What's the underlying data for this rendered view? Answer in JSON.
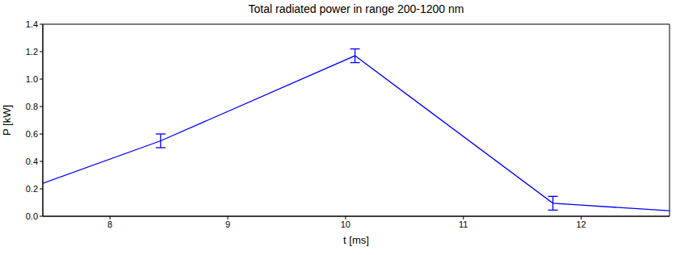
{
  "chart_data": {
    "type": "line",
    "title": "Total radiated power in range 200-1200 nm",
    "x_label": "t [ms]",
    "y_label": "P [kW]",
    "x": [
      7.43,
      8.43,
      10.08,
      11.76,
      12.75
    ],
    "series": [
      {
        "name": "P",
        "color": "#0000ff",
        "values": [
          0.24,
          0.55,
          1.17,
          0.095,
          0.04
        ],
        "errors": [
          null,
          0.05,
          0.05,
          0.05,
          null
        ]
      }
    ],
    "xlim": [
      7.43,
      12.75
    ],
    "xticks": [
      8,
      9,
      10,
      11,
      12
    ],
    "ylim": [
      0,
      1.4
    ],
    "yticks": [
      {
        "value": 0,
        "label": "0.0"
      },
      0.2,
      0.4,
      0.6,
      0.8,
      {
        "value": 1,
        "label": "1.0"
      },
      1.2,
      1.4
    ],
    "grid": false
  }
}
